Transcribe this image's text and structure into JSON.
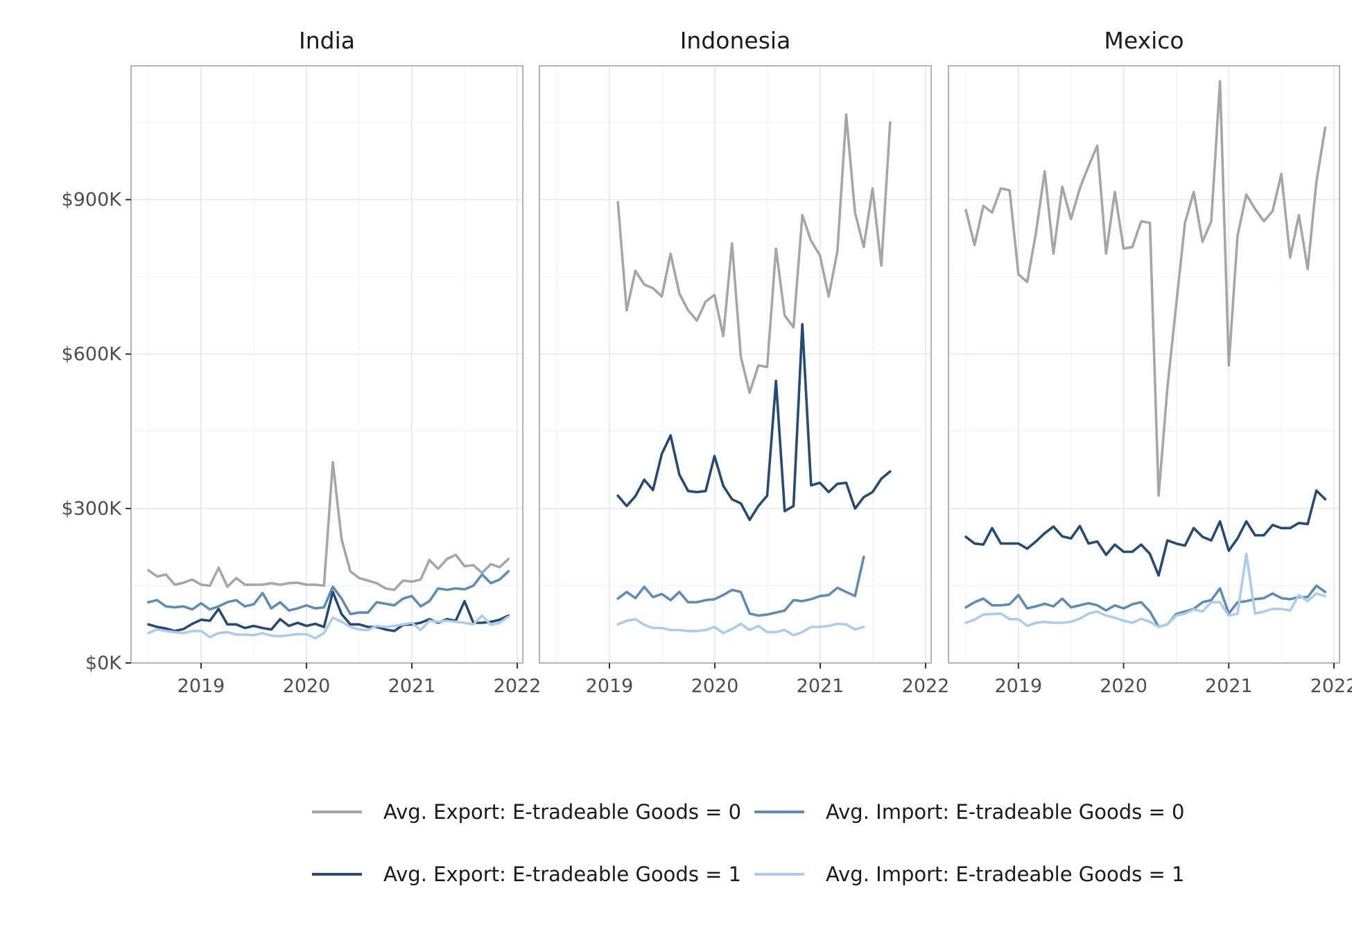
{
  "chart_data": {
    "type": "line",
    "facets": [
      "India",
      "Indonesia",
      "Mexico"
    ],
    "x_ticks": [
      "2019",
      "2020",
      "2021",
      "2022"
    ],
    "y_ticks": [
      "$0K",
      "$300K",
      "$600K",
      "$900K"
    ],
    "y_tick_values": [
      0,
      300,
      600,
      900
    ],
    "ylim": [
      0,
      1160
    ],
    "xlim": [
      2018.5,
      2022
    ],
    "y_unit": "thousand USD",
    "grid": true,
    "legend_position": "bottom",
    "series": [
      {
        "name": "Avg. Export: E-tradeable Goods = 0",
        "color": "#a6a6a6"
      },
      {
        "name": "Avg. Import: E-tradeable Goods = 0",
        "color": "#5b8db8"
      },
      {
        "name": "Avg. Export: E-tradeable Goods = 1",
        "color": "#254a73"
      },
      {
        "name": "Avg. Import: E-tradeable Goods = 1",
        "color": "#a9cdea"
      }
    ],
    "data": {
      "India": {
        "start": 2018.5,
        "values": [
          [
            180,
            168,
            172,
            152,
            156,
            162,
            152,
            150,
            185,
            148,
            165,
            152,
            152,
            152,
            155,
            152,
            155,
            156,
            152,
            152,
            150,
            390,
            240,
            178,
            165,
            160,
            155,
            145,
            142,
            160,
            158,
            162,
            200,
            183,
            202,
            210,
            188,
            190,
            175,
            192,
            186,
            202
          ],
          [
            118,
            122,
            110,
            108,
            110,
            104,
            116,
            104,
            110,
            118,
            122,
            110,
            114,
            136,
            106,
            118,
            102,
            106,
            112,
            106,
            108,
            148,
            125,
            95,
            98,
            98,
            118,
            115,
            112,
            125,
            130,
            110,
            120,
            145,
            142,
            145,
            143,
            150,
            172,
            155,
            162,
            178
          ],
          [
            75,
            70,
            67,
            62,
            66,
            76,
            84,
            82,
            105,
            75,
            75,
            68,
            72,
            68,
            65,
            85,
            72,
            78,
            72,
            76,
            70,
            138,
            95,
            75,
            75,
            70,
            70,
            65,
            62,
            74,
            75,
            78,
            85,
            78,
            85,
            82,
            120,
            78,
            78,
            80,
            84,
            92
          ],
          [
            58,
            65,
            62,
            60,
            58,
            62,
            62,
            50,
            58,
            60,
            55,
            55,
            54,
            58,
            53,
            52,
            54,
            56,
            56,
            48,
            58,
            88,
            80,
            70,
            65,
            64,
            72,
            70,
            72,
            75,
            78,
            64,
            82,
            80,
            82,
            80,
            78,
            75,
            92,
            74,
            78,
            90
          ]
        ]
      },
      "Indonesia": {
        "start": 2019.08,
        "values": [
          [
            895,
            685,
            762,
            735,
            728,
            712,
            795,
            718,
            685,
            665,
            702,
            715,
            635,
            815,
            595,
            525,
            578,
            575,
            805,
            675,
            652,
            870,
            820,
            792,
            712,
            800,
            1065,
            875,
            808,
            922,
            772,
            1050
          ],
          [
            125,
            138,
            126,
            148,
            128,
            134,
            122,
            138,
            118,
            118,
            122,
            124,
            132,
            142,
            138,
            96,
            92,
            94,
            98,
            102,
            122,
            120,
            124,
            130,
            132,
            146,
            138,
            130,
            206
          ],
          [
            325,
            305,
            324,
            356,
            336,
            406,
            442,
            366,
            334,
            332,
            334,
            402,
            344,
            318,
            310,
            278,
            305,
            325,
            548,
            295,
            305,
            658,
            345,
            350,
            332,
            348,
            350,
            300,
            322,
            332,
            358,
            372
          ],
          [
            75,
            82,
            85,
            74,
            68,
            68,
            64,
            64,
            62,
            62,
            64,
            70,
            58,
            66,
            76,
            64,
            72,
            60,
            60,
            64,
            54,
            60,
            70,
            70,
            72,
            76,
            75,
            65,
            70
          ]
        ]
      },
      "Mexico": {
        "start": 2018.5,
        "values": [
          [
            880,
            812,
            888,
            875,
            922,
            918,
            755,
            740,
            835,
            955,
            795,
            925,
            862,
            922,
            965,
            1005,
            795,
            915,
            805,
            808,
            858,
            855,
            325,
            535,
            695,
            855,
            915,
            818,
            858,
            1130,
            578,
            830,
            910,
            882,
            858,
            878,
            950,
            788,
            870,
            765,
            935,
            1040
          ],
          [
            108,
            118,
            125,
            112,
            112,
            114,
            132,
            106,
            110,
            115,
            110,
            125,
            108,
            112,
            116,
            112,
            102,
            112,
            106,
            114,
            118,
            100,
            70,
            75,
            95,
            100,
            105,
            118,
            122,
            145,
            96,
            118,
            120,
            124,
            126,
            135,
            126,
            124,
            128,
            128,
            150,
            138
          ],
          [
            245,
            232,
            230,
            262,
            232,
            232,
            232,
            222,
            236,
            252,
            265,
            246,
            242,
            266,
            232,
            236,
            210,
            230,
            216,
            216,
            230,
            212,
            170,
            238,
            232,
            228,
            262,
            245,
            238,
            275,
            218,
            242,
            275,
            248,
            248,
            268,
            262,
            262,
            272,
            270,
            335,
            318
          ],
          [
            78,
            84,
            94,
            95,
            96,
            85,
            85,
            72,
            78,
            80,
            78,
            78,
            80,
            86,
            96,
            100,
            92,
            88,
            82,
            78,
            86,
            80,
            70,
            75,
            92,
            96,
            104,
            100,
            118,
            118,
            92,
            96,
            212,
            96,
            100,
            105,
            105,
            102,
            132,
            120,
            135,
            130
          ]
        ]
      }
    }
  }
}
